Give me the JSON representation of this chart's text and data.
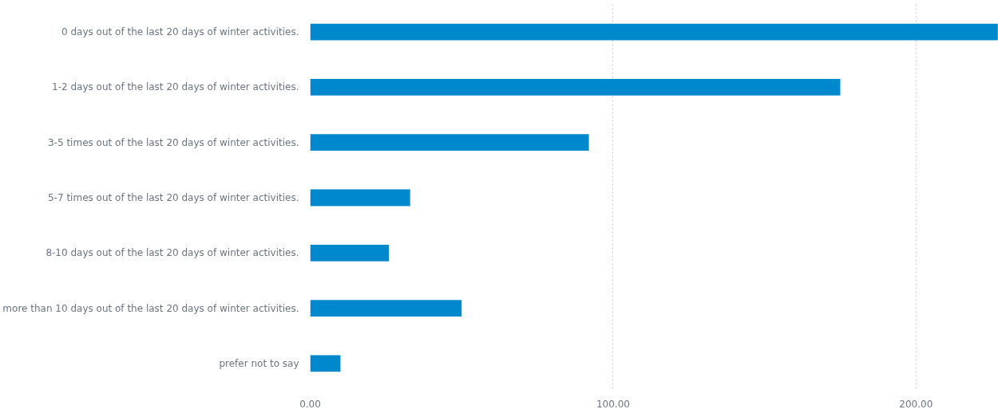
{
  "chart_data": {
    "type": "bar",
    "orientation": "horizontal",
    "categories": [
      "0 days out of the last 20 days of winter activities.",
      "1-2 days out of the last 20 days of winter activities.",
      "3-5 times out of the last 20 days of winter activities.",
      "5-7 times out of the last 20 days of winter activities.",
      "8-10 days out of the last 20 days of winter activities.",
      "more than 10 days out of the last 20 days of winter activities.",
      "prefer not to say"
    ],
    "values": [
      227,
      175,
      92,
      33,
      26,
      50,
      10
    ],
    "color": "#0088cc",
    "xlim": [
      0,
      227.2
    ],
    "xticks": [
      {
        "value": 0,
        "label": "0.00"
      },
      {
        "value": 100,
        "label": "100.00"
      },
      {
        "value": 200,
        "label": "200.00"
      }
    ],
    "grid": "x"
  }
}
